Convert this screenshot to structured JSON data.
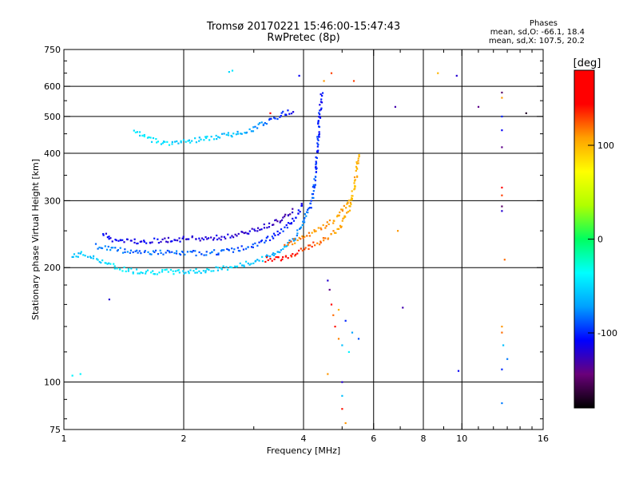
{
  "chart_data": {
    "type": "scatter",
    "title": "Tromsø 20170221 15:46:00-15:47:43",
    "subtitle": "RwPretec (8p)",
    "xlabel": "Frequency [MHz]",
    "ylabel": "Stationary phase Virtual Height [km]",
    "x_scale": "log",
    "y_scale": "log",
    "xlim": [
      1,
      16
    ],
    "ylim": [
      75,
      750
    ],
    "x_ticks": [
      1,
      2,
      4,
      6,
      8,
      10,
      16
    ],
    "y_ticks": [
      75,
      100,
      200,
      300,
      400,
      500,
      600,
      750
    ],
    "x_grid": [
      2,
      4,
      6,
      8,
      10
    ],
    "y_grid": [
      100,
      200,
      300,
      400,
      500,
      600
    ],
    "grid": true,
    "color_variable": "phase",
    "colorbar": {
      "label": "[deg]",
      "min": -180,
      "max": 180,
      "ticks": [
        100,
        0,
        -100
      ],
      "colors": [
        "#000000",
        "#6a007a",
        "#0000ff",
        "#00a0ff",
        "#00ffff",
        "#00ff60",
        "#b0ff00",
        "#ffff00",
        "#ffa000",
        "#ff0000",
        "#ff0000"
      ]
    },
    "phase_stats": {
      "heading": "Phases",
      "line_o": "mean, sd,O: -66.1, 18.4",
      "line_x": "mean, sd,X: 107.5, 20.2"
    },
    "traces": [
      {
        "name": "",
        "points": [
          [
            1.05,
            213,
            -60
          ],
          [
            1.1,
            218,
            -58
          ],
          [
            1.25,
            208,
            -50
          ],
          [
            1.35,
            200,
            -45
          ],
          [
            1.5,
            196,
            -45
          ],
          [
            1.7,
            195,
            -45
          ],
          [
            2.0,
            195,
            -48
          ],
          [
            2.3,
            197,
            -50
          ],
          [
            2.6,
            200,
            -52
          ],
          [
            2.9,
            205,
            -55
          ],
          [
            3.2,
            212,
            -60
          ],
          [
            3.5,
            222,
            -65
          ],
          [
            3.8,
            240,
            -72
          ],
          [
            4.0,
            262,
            -80
          ],
          [
            4.2,
            300,
            -88
          ],
          [
            4.3,
            360,
            -95
          ],
          [
            4.35,
            440,
            -100
          ],
          [
            4.4,
            520,
            -105
          ],
          [
            4.45,
            580,
            -110
          ]
        ]
      },
      {
        "name": "",
        "points": [
          [
            1.2,
            228,
            -80
          ],
          [
            1.4,
            222,
            -82
          ],
          [
            1.6,
            220,
            -85
          ],
          [
            2.0,
            218,
            -85
          ],
          [
            2.5,
            220,
            -88
          ],
          [
            3.0,
            228,
            -92
          ],
          [
            3.5,
            248,
            -100
          ],
          [
            3.8,
            268,
            -108
          ],
          [
            4.0,
            295,
            -115
          ]
        ]
      },
      {
        "name": "",
        "points": [
          [
            1.25,
            245,
            -110
          ],
          [
            1.35,
            235,
            -110
          ],
          [
            1.6,
            235,
            -112
          ],
          [
            2.0,
            238,
            -115
          ],
          [
            2.5,
            240,
            -118
          ],
          [
            3.0,
            250,
            -120
          ],
          [
            3.5,
            268,
            -125
          ],
          [
            3.8,
            285,
            -130
          ]
        ]
      },
      {
        "name": "",
        "points": [
          [
            1.5,
            455,
            -45
          ],
          [
            1.6,
            440,
            -45
          ],
          [
            1.8,
            425,
            -50
          ],
          [
            2.0,
            430,
            -52
          ],
          [
            2.3,
            438,
            -55
          ],
          [
            2.7,
            450,
            -62
          ],
          [
            3.0,
            465,
            -75
          ],
          [
            3.3,
            490,
            -90
          ],
          [
            3.6,
            510,
            -105
          ],
          [
            3.8,
            520,
            -112
          ]
        ]
      },
      {
        "name": "",
        "points": [
          [
            3.2,
            210,
            150
          ],
          [
            3.5,
            212,
            145
          ],
          [
            3.8,
            218,
            140
          ],
          [
            4.1,
            225,
            130
          ],
          [
            4.4,
            235,
            120
          ],
          [
            4.7,
            245,
            112
          ],
          [
            5.0,
            260,
            105
          ],
          [
            5.2,
            285,
            100
          ],
          [
            5.35,
            320,
            100
          ],
          [
            5.45,
            360,
            102
          ],
          [
            5.5,
            400,
            105
          ]
        ]
      },
      {
        "name": "",
        "points": [
          [
            3.6,
            230,
            120
          ],
          [
            4.0,
            240,
            115
          ],
          [
            4.4,
            252,
            110
          ],
          [
            4.8,
            268,
            108
          ],
          [
            5.1,
            290,
            105
          ],
          [
            5.3,
            310,
            100
          ]
        ]
      }
    ],
    "isolated": [
      [
        1.05,
        104,
        -40
      ],
      [
        1.1,
        105,
        -40
      ],
      [
        1.3,
        165,
        -120
      ],
      [
        2.6,
        655,
        -50
      ],
      [
        2.65,
        660,
        -45
      ],
      [
        3.3,
        510,
        150
      ],
      [
        3.6,
        505,
        -100
      ],
      [
        3.9,
        640,
        -110
      ],
      [
        4.5,
        620,
        110
      ],
      [
        4.7,
        650,
        130
      ],
      [
        4.6,
        185,
        -120
      ],
      [
        4.65,
        175,
        -140
      ],
      [
        4.7,
        160,
        150
      ],
      [
        4.75,
        150,
        120
      ],
      [
        4.9,
        155,
        100
      ],
      [
        4.8,
        140,
        140
      ],
      [
        4.9,
        130,
        115
      ],
      [
        5.0,
        125,
        -60
      ],
      [
        5.1,
        145,
        -100
      ],
      [
        5.2,
        120,
        -40
      ],
      [
        5.3,
        135,
        -70
      ],
      [
        5.5,
        130,
        -90
      ],
      [
        5.0,
        100,
        -120
      ],
      [
        5.0,
        92,
        -60
      ],
      [
        5.0,
        85,
        140
      ],
      [
        5.1,
        78,
        110
      ],
      [
        5.35,
        620,
        130
      ],
      [
        4.6,
        105,
        110
      ],
      [
        6.9,
        250,
        110
      ],
      [
        7.1,
        157,
        -130
      ],
      [
        6.8,
        530,
        -130
      ],
      [
        8.7,
        650,
        100
      ],
      [
        9.7,
        640,
        -120
      ],
      [
        9.8,
        107,
        -110
      ],
      [
        11.0,
        530,
        -140
      ],
      [
        12.6,
        578,
        -150
      ],
      [
        12.6,
        560,
        110
      ],
      [
        12.6,
        500,
        -100
      ],
      [
        12.6,
        460,
        -110
      ],
      [
        12.6,
        415,
        -140
      ],
      [
        12.6,
        325,
        150
      ],
      [
        12.6,
        310,
        130
      ],
      [
        12.6,
        290,
        -150
      ],
      [
        12.6,
        282,
        -120
      ],
      [
        12.8,
        210,
        120
      ],
      [
        12.6,
        140,
        110
      ],
      [
        12.6,
        135,
        120
      ],
      [
        12.7,
        125,
        -60
      ],
      [
        13.0,
        115,
        -80
      ],
      [
        12.6,
        108,
        -100
      ],
      [
        12.6,
        88,
        -80
      ],
      [
        14.5,
        510,
        -170
      ]
    ]
  }
}
